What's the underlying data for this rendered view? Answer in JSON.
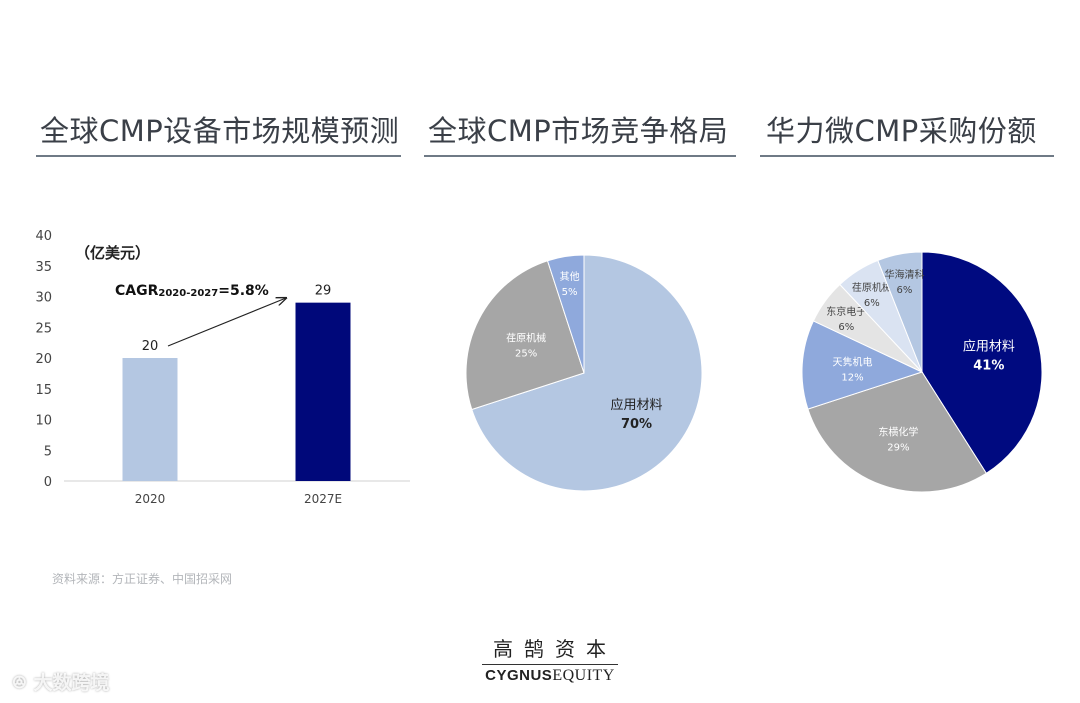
{
  "titles": {
    "market_size": "全球CMP设备市场规模预测",
    "competition": "全球CMP市场竞争格局",
    "hwatsing": "华力微CMP采购份额"
  },
  "source_note": "资料来源：方正证券、中国招采网",
  "logo": {
    "cn": "高鹄资本",
    "en_bold": "CYGNUS",
    "en_serif": "EQUITY"
  },
  "watermark": "大数跨境",
  "chart_data": [
    {
      "type": "bar",
      "unit_label": "（亿美元）",
      "categories": [
        "2020",
        "2027E"
      ],
      "values": [
        20,
        29
      ],
      "value_labels": [
        "20",
        "29"
      ],
      "colors": [
        "#b4c7e2",
        "#00087a"
      ],
      "yticks": [
        "0",
        "5",
        "10",
        "15",
        "20",
        "25",
        "30",
        "35",
        "40"
      ],
      "ylim": [
        0,
        40
      ],
      "annotation": {
        "prefix": "CAGR",
        "sub": "2020-2027",
        "suffix": "=5.8%"
      }
    },
    {
      "type": "pie",
      "slices": [
        {
          "name": "应用材料",
          "pct_label": "70%",
          "value": 70,
          "color": "#b4c7e2",
          "text_color": "#222222"
        },
        {
          "name": "荏原机械",
          "pct_label": "25%",
          "value": 25,
          "color": "#a6a6a6",
          "text_color": "#ffffff"
        },
        {
          "name": "其他",
          "pct_label": "5%",
          "value": 5,
          "color": "#8fa9dc",
          "text_color": "#ffffff"
        }
      ]
    },
    {
      "type": "pie",
      "slices": [
        {
          "name": "应用材料",
          "pct_label": "41%",
          "value": 41,
          "color": "#000a80",
          "text_color": "#ffffff"
        },
        {
          "name": "东横化学",
          "pct_label": "29%",
          "value": 29,
          "color": "#a6a6a6",
          "text_color": "#ffffff"
        },
        {
          "name": "天隽机电",
          "pct_label": "12%",
          "value": 12,
          "color": "#8fa9dc",
          "text_color": "#ffffff"
        },
        {
          "name": "东京电子",
          "pct_label": "6%",
          "value": 6,
          "color": "#e4e4e4",
          "text_color": "#444444"
        },
        {
          "name": "荏原机械",
          "pct_label": "6%",
          "value": 6,
          "color": "#dae3f2",
          "text_color": "#444444"
        },
        {
          "name": "华海清科",
          "pct_label": "6%",
          "value": 6,
          "color": "#b4c7e2",
          "text_color": "#444444"
        }
      ]
    }
  ]
}
